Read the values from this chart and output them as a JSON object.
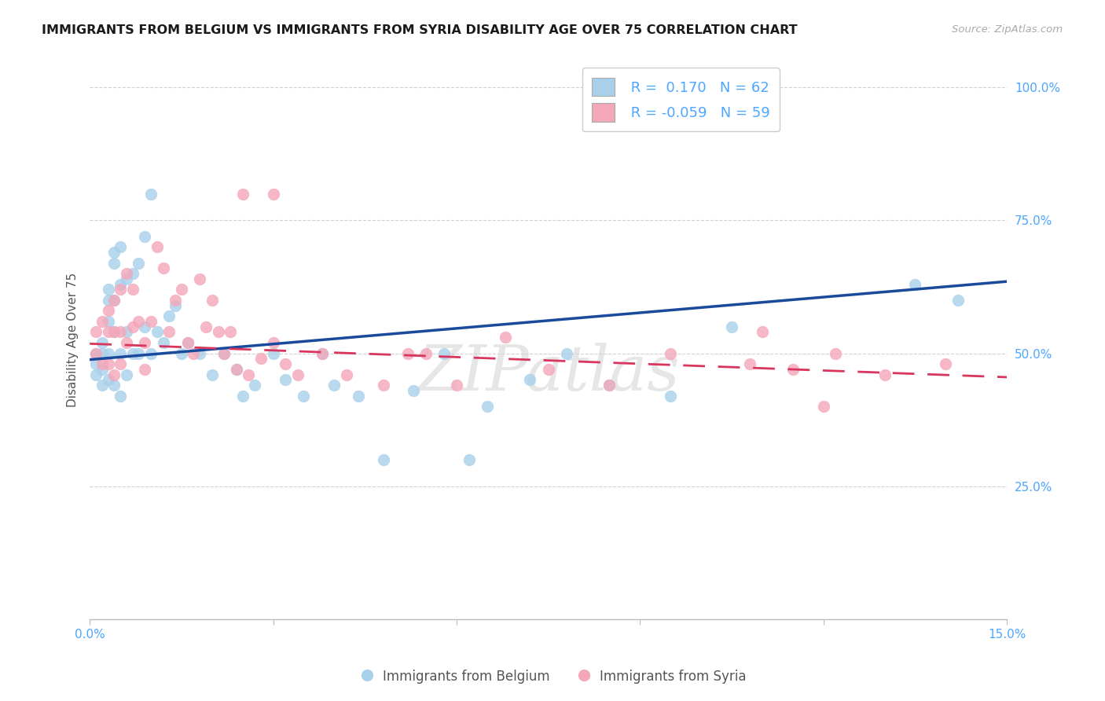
{
  "title": "IMMIGRANTS FROM BELGIUM VS IMMIGRANTS FROM SYRIA DISABILITY AGE OVER 75 CORRELATION CHART",
  "source": "Source: ZipAtlas.com",
  "ylabel": "Disability Age Over 75",
  "xlim": [
    0.0,
    0.15
  ],
  "ylim": [
    0.0,
    1.05
  ],
  "yticks": [
    0.0,
    0.25,
    0.5,
    0.75,
    1.0
  ],
  "ytick_labels": [
    "",
    "25.0%",
    "50.0%",
    "75.0%",
    "100.0%"
  ],
  "xticks": [
    0.0,
    0.03,
    0.06,
    0.09,
    0.12,
    0.15
  ],
  "xtick_labels": [
    "0.0%",
    "",
    "",
    "",
    "",
    "15.0%"
  ],
  "belgium_R": 0.17,
  "belgium_N": 62,
  "syria_R": -0.059,
  "syria_N": 59,
  "belgium_color": "#a8d0ea",
  "syria_color": "#f4a7b9",
  "belgium_line_color": "#1a4a9c",
  "syria_line_color": "#d9365e",
  "watermark": "ZIPatlas",
  "background_color": "#ffffff",
  "bel_line_x0": 0.0,
  "bel_line_y0": 0.488,
  "bel_line_x1": 0.15,
  "bel_line_y1": 0.635,
  "syr_line_x0": 0.0,
  "syr_line_y0": 0.518,
  "syr_line_x1": 0.15,
  "syr_line_y1": 0.455,
  "belgium_pts_x": [
    0.001,
    0.001,
    0.001,
    0.002,
    0.002,
    0.002,
    0.002,
    0.003,
    0.003,
    0.003,
    0.003,
    0.003,
    0.004,
    0.004,
    0.004,
    0.004,
    0.004,
    0.005,
    0.005,
    0.005,
    0.005,
    0.006,
    0.006,
    0.006,
    0.007,
    0.007,
    0.008,
    0.008,
    0.009,
    0.009,
    0.01,
    0.01,
    0.011,
    0.012,
    0.013,
    0.014,
    0.015,
    0.016,
    0.018,
    0.02,
    0.022,
    0.024,
    0.025,
    0.027,
    0.03,
    0.032,
    0.035,
    0.038,
    0.04,
    0.044,
    0.048,
    0.053,
    0.058,
    0.062,
    0.065,
    0.072,
    0.078,
    0.085,
    0.095,
    0.105,
    0.135,
    0.142
  ],
  "belgium_pts_y": [
    0.5,
    0.48,
    0.46,
    0.52,
    0.5,
    0.47,
    0.44,
    0.62,
    0.6,
    0.56,
    0.5,
    0.45,
    0.69,
    0.67,
    0.6,
    0.54,
    0.44,
    0.7,
    0.63,
    0.5,
    0.42,
    0.64,
    0.54,
    0.46,
    0.65,
    0.5,
    0.67,
    0.5,
    0.72,
    0.55,
    0.8,
    0.5,
    0.54,
    0.52,
    0.57,
    0.59,
    0.5,
    0.52,
    0.5,
    0.46,
    0.5,
    0.47,
    0.42,
    0.44,
    0.5,
    0.45,
    0.42,
    0.5,
    0.44,
    0.42,
    0.3,
    0.43,
    0.5,
    0.3,
    0.4,
    0.45,
    0.5,
    0.44,
    0.42,
    0.55,
    0.63,
    0.6
  ],
  "syria_pts_x": [
    0.001,
    0.001,
    0.002,
    0.002,
    0.003,
    0.003,
    0.003,
    0.004,
    0.004,
    0.004,
    0.005,
    0.005,
    0.005,
    0.006,
    0.006,
    0.007,
    0.007,
    0.008,
    0.009,
    0.009,
    0.01,
    0.011,
    0.012,
    0.013,
    0.014,
    0.015,
    0.016,
    0.017,
    0.018,
    0.019,
    0.02,
    0.021,
    0.022,
    0.023,
    0.024,
    0.026,
    0.028,
    0.03,
    0.032,
    0.034,
    0.038,
    0.042,
    0.048,
    0.052,
    0.06,
    0.068,
    0.075,
    0.085,
    0.095,
    0.108,
    0.115,
    0.122,
    0.13,
    0.14,
    0.025,
    0.03,
    0.055,
    0.11,
    0.12
  ],
  "syria_pts_y": [
    0.54,
    0.5,
    0.56,
    0.48,
    0.58,
    0.54,
    0.48,
    0.6,
    0.54,
    0.46,
    0.62,
    0.54,
    0.48,
    0.65,
    0.52,
    0.62,
    0.55,
    0.56,
    0.52,
    0.47,
    0.56,
    0.7,
    0.66,
    0.54,
    0.6,
    0.62,
    0.52,
    0.5,
    0.64,
    0.55,
    0.6,
    0.54,
    0.5,
    0.54,
    0.47,
    0.46,
    0.49,
    0.52,
    0.48,
    0.46,
    0.5,
    0.46,
    0.44,
    0.5,
    0.44,
    0.53,
    0.47,
    0.44,
    0.5,
    0.48,
    0.47,
    0.5,
    0.46,
    0.48,
    0.8,
    0.8,
    0.5,
    0.54,
    0.4
  ]
}
